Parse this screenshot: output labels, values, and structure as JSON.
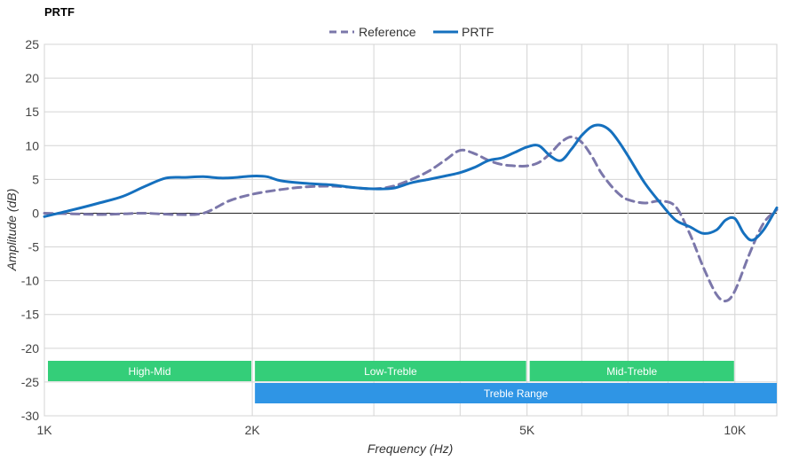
{
  "chart_data": {
    "type": "line",
    "title": "PRTF",
    "xlabel": "Frequency (Hz)",
    "ylabel": "Amplitude (dB)",
    "xscale": "log",
    "xlim": [
      1000,
      11500
    ],
    "ylim": [
      -30,
      25
    ],
    "y_ticks": [
      25,
      20,
      15,
      10,
      5,
      0,
      -5,
      -10,
      -15,
      -20,
      -25,
      -30
    ],
    "y_tick_labels": [
      "25",
      "20",
      "15",
      "10",
      "5",
      "0",
      "-5",
      "-10",
      "-15",
      "-20",
      "-25",
      "-30"
    ],
    "x_ticks": [
      1000,
      2000,
      5000,
      10000
    ],
    "x_tick_labels": [
      "1K",
      "2K",
      "5K",
      "10K"
    ],
    "x_minor_gridlines": [
      3000,
      4000,
      6000,
      7000,
      8000,
      9000
    ],
    "grid": true,
    "legend_position": "top-center",
    "series": [
      {
        "name": "Reference",
        "color": "#7b77aa",
        "style": "dashed",
        "x": [
          1000,
          1100,
          1200,
          1300,
          1400,
          1550,
          1700,
          1850,
          2000,
          2200,
          2400,
          2600,
          2800,
          3000,
          3200,
          3400,
          3600,
          3800,
          4000,
          4200,
          4400,
          4600,
          4800,
          5000,
          5200,
          5400,
          5600,
          5800,
          6000,
          6200,
          6400,
          6600,
          6800,
          7000,
          7400,
          7800,
          8200,
          8600,
          9000,
          9400,
          9700,
          10000,
          10500,
          11000,
          11500
        ],
        "y": [
          0,
          -0.1,
          -0.2,
          -0.1,
          0,
          -0.2,
          0,
          1.8,
          2.8,
          3.5,
          3.9,
          4.0,
          3.8,
          3.6,
          4.0,
          5.0,
          6.2,
          7.8,
          9.3,
          8.8,
          7.8,
          7.2,
          7.0,
          7.0,
          7.5,
          8.8,
          10.5,
          11.3,
          10.5,
          8.5,
          6.0,
          4.2,
          2.8,
          2.0,
          1.5,
          1.8,
          1.0,
          -3.0,
          -8.0,
          -12.0,
          -13.0,
          -11.5,
          -6.0,
          -1.5,
          0.5
        ]
      },
      {
        "name": "PRTF",
        "color": "#1570be",
        "style": "solid",
        "x": [
          1000,
          1100,
          1200,
          1300,
          1400,
          1500,
          1600,
          1700,
          1800,
          1900,
          2000,
          2100,
          2200,
          2400,
          2600,
          2800,
          3000,
          3200,
          3400,
          3600,
          3800,
          4000,
          4200,
          4400,
          4600,
          4800,
          5000,
          5200,
          5400,
          5600,
          5800,
          6000,
          6200,
          6400,
          6600,
          6800,
          7000,
          7400,
          7800,
          8200,
          8600,
          9000,
          9400,
          9700,
          10000,
          10300,
          10600,
          11000,
          11500
        ],
        "y": [
          -0.5,
          0.5,
          1.5,
          2.5,
          4.0,
          5.2,
          5.3,
          5.4,
          5.2,
          5.3,
          5.5,
          5.4,
          4.8,
          4.4,
          4.2,
          3.8,
          3.6,
          3.7,
          4.5,
          5.0,
          5.5,
          6.0,
          6.8,
          7.8,
          8.2,
          9.0,
          9.8,
          10.0,
          8.5,
          7.8,
          9.5,
          11.5,
          12.8,
          13.0,
          12.2,
          10.5,
          8.5,
          4.5,
          1.5,
          -1.0,
          -2.0,
          -3.0,
          -2.5,
          -1.0,
          -0.8,
          -3.0,
          -4.0,
          -2.5,
          0.8
        ]
      }
    ],
    "bands": [
      {
        "label": "High-Mid",
        "x_start": 1000,
        "x_end": 2000,
        "row": 1,
        "color": "#34ce79"
      },
      {
        "label": "Low-Treble",
        "x_start": 2000,
        "x_end": 5000,
        "row": 1,
        "color": "#34ce79"
      },
      {
        "label": "Mid-Treble",
        "x_start": 5000,
        "x_end": 10000,
        "row": 1,
        "color": "#34ce79"
      },
      {
        "label": "Treble Range",
        "x_start": 2000,
        "x_end": 11500,
        "row": 2,
        "color": "#2f95e5"
      }
    ]
  }
}
